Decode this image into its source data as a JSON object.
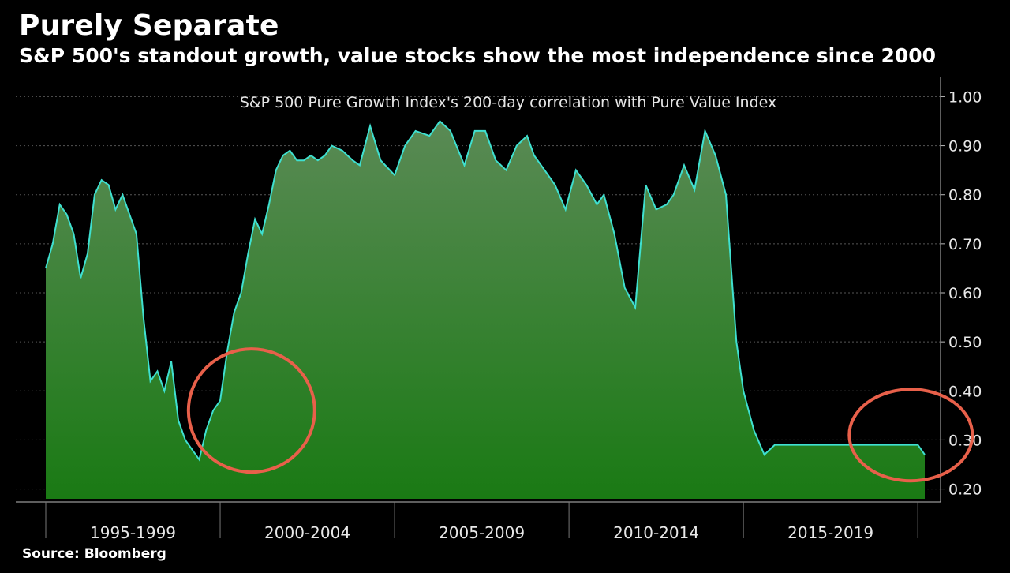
{
  "header": {
    "title": "Purely Separate",
    "subtitle": "S&P 500's standout growth, value stocks show the most independence since 2000"
  },
  "footer": {
    "source": "Source: Bloomberg"
  },
  "colors": {
    "background": "#000000",
    "line": "#3fe0d0",
    "fill_top": "#5a8a55",
    "fill_bottom": "#1a7a14",
    "highlight_circle": "#e8604a"
  },
  "chart_data": {
    "type": "area",
    "annotation": "S&P 500 Pure Growth Index's 200-day correlation with Pure Value Index",
    "xlabel": "",
    "ylabel": "",
    "ylim": [
      0.18,
      1.02
    ],
    "yaxis_position": "right",
    "yticks": [
      "1.00",
      "0.90",
      "0.80",
      "0.70",
      "0.60",
      "0.50",
      "0.40",
      "0.30",
      "0.20"
    ],
    "ytick_values": [
      1.0,
      0.9,
      0.8,
      0.7,
      0.6,
      0.5,
      0.4,
      0.3,
      0.2
    ],
    "xlim": [
      1995.0,
      2020.2
    ],
    "x_categories": [
      "1995-1999",
      "2000-2004",
      "2005-2009",
      "2010-2014",
      "2015-2019"
    ],
    "grid": true,
    "highlights": [
      {
        "x": 2000.9,
        "y": 0.36
      },
      {
        "x": 2019.8,
        "y": 0.31
      }
    ],
    "series": [
      {
        "x": [
          1995.0,
          1995.2,
          1995.4,
          1995.6,
          1995.8,
          1996.0,
          1996.2,
          1996.4,
          1996.6,
          1996.8,
          1997.0,
          1997.2,
          1997.4,
          1997.6,
          1997.8,
          1998.0,
          1998.2,
          1998.4,
          1998.6,
          1998.8,
          1999.0,
          1999.2,
          1999.4,
          1999.6,
          1999.8,
          2000.0,
          2000.2,
          2000.4,
          2000.6,
          2000.8,
          2001.0,
          2001.2,
          2001.4,
          2001.6,
          2001.8,
          2002.0,
          2002.2,
          2002.4,
          2002.6,
          2002.8,
          2003.0,
          2003.2,
          2003.5,
          2003.8,
          2004.0,
          2004.3,
          2004.6,
          2005.0,
          2005.3,
          2005.6,
          2006.0,
          2006.3,
          2006.6,
          2007.0,
          2007.3,
          2007.6,
          2007.9,
          2008.2,
          2008.5,
          2008.8,
          2009.0,
          2009.3,
          2009.6,
          2009.9,
          2010.2,
          2010.5,
          2010.8,
          2011.0,
          2011.3,
          2011.6,
          2011.9,
          2012.2,
          2012.5,
          2012.8,
          2013.0,
          2013.3,
          2013.6,
          2013.9,
          2014.2,
          2014.5,
          2014.8,
          2015.0,
          2015.3,
          2015.6,
          2015.9,
          2016.2,
          2016.4,
          2016.6,
          2016.8,
          2017.0,
          2017.2,
          2017.4,
          2017.6,
          2017.8,
          2018.0,
          2018.2,
          2018.5,
          2018.8,
          2019.0,
          2019.2,
          2019.4,
          2019.6,
          2019.8,
          2020.0,
          2020.2
        ],
        "y": [
          0.65,
          0.7,
          0.78,
          0.76,
          0.72,
          0.63,
          0.68,
          0.8,
          0.83,
          0.82,
          0.77,
          0.8,
          0.76,
          0.72,
          0.55,
          0.42,
          0.44,
          0.4,
          0.46,
          0.34,
          0.3,
          0.28,
          0.26,
          0.32,
          0.36,
          0.38,
          0.48,
          0.56,
          0.6,
          0.68,
          0.75,
          0.72,
          0.78,
          0.85,
          0.88,
          0.89,
          0.87,
          0.87,
          0.88,
          0.87,
          0.88,
          0.9,
          0.89,
          0.87,
          0.86,
          0.94,
          0.87,
          0.84,
          0.9,
          0.93,
          0.92,
          0.95,
          0.93,
          0.86,
          0.93,
          0.93,
          0.87,
          0.85,
          0.9,
          0.92,
          0.88,
          0.85,
          0.82,
          0.77,
          0.85,
          0.82,
          0.78,
          0.8,
          0.72,
          0.61,
          0.57,
          0.82,
          0.77,
          0.78,
          0.8,
          0.86,
          0.81,
          0.93,
          0.88,
          0.8,
          0.5,
          0.4,
          0.32,
          0.27,
          0.29,
          0.29,
          0.29,
          0.29,
          0.29,
          0.29,
          0.29,
          0.29,
          0.29,
          0.29,
          0.29,
          0.29,
          0.29,
          0.29,
          0.29,
          0.29,
          0.29,
          0.29,
          0.29,
          0.29,
          0.27
        ]
      }
    ]
  }
}
